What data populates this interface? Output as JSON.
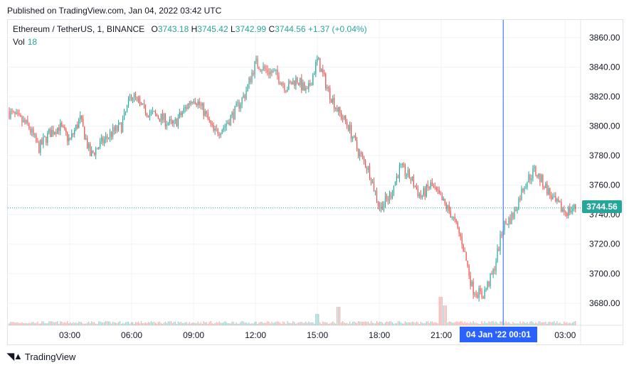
{
  "header": {
    "published": "Published on TradingView.com, Jan 04, 2022 03:42 UTC"
  },
  "legend": {
    "symbol": "Ethereum / TetherUS, 1, BINANCE",
    "open_label": "O",
    "open": "3743.18",
    "high_label": "H",
    "high": "3745.42",
    "low_label": "L",
    "low": "3742.99",
    "close_label": "C",
    "close": "3744.56",
    "change": "+1.37 (+0.04%)"
  },
  "volume": {
    "label": "Vol",
    "value": "18"
  },
  "footer": {
    "brand": "TradingView"
  },
  "colors": {
    "up": "#26a69a",
    "down": "#ef5350",
    "crosshair": "#2962ff",
    "grid": "#f0f3fa"
  },
  "chart_data": {
    "type": "candlestick",
    "last_price_label": "3744.56",
    "crosshair_label": "04 Jan '22   00:01",
    "y_ticks": [
      "3860.00",
      "3840.00",
      "3820.00",
      "3800.00",
      "3780.00",
      "3760.00",
      "3740.00",
      "3720.00",
      "3700.00",
      "3680.00"
    ],
    "y_tick_values": [
      3860,
      3840,
      3820,
      3800,
      3780,
      3760,
      3740,
      3720,
      3700,
      3680
    ],
    "ylim": [
      3665,
      3872
    ],
    "x_ticks": [
      "03:00",
      "06:00",
      "09:00",
      "12:00",
      "15:00",
      "18:00",
      "21:00",
      "00:00",
      "03:00"
    ],
    "x_tick_hours": [
      3,
      6,
      9,
      12,
      15,
      18,
      21,
      24,
      27
    ],
    "xlim_hours": [
      0.0,
      27.75
    ],
    "crosshair_hour": 24.0,
    "grid": true,
    "close_path": [
      [
        0.0,
        3810
      ],
      [
        0.5,
        3805
      ],
      [
        1.0,
        3800
      ],
      [
        1.5,
        3785
      ],
      [
        2.0,
        3795
      ],
      [
        2.5,
        3800
      ],
      [
        3.0,
        3790
      ],
      [
        3.5,
        3805
      ],
      [
        4.0,
        3780
      ],
      [
        4.5,
        3788
      ],
      [
        5.0,
        3795
      ],
      [
        5.5,
        3800
      ],
      [
        6.0,
        3822
      ],
      [
        6.5,
        3812
      ],
      [
        7.0,
        3808
      ],
      [
        7.5,
        3805
      ],
      [
        8.0,
        3800
      ],
      [
        8.5,
        3810
      ],
      [
        9.0,
        3820
      ],
      [
        9.5,
        3810
      ],
      [
        10.0,
        3795
      ],
      [
        10.5,
        3800
      ],
      [
        11.0,
        3810
      ],
      [
        11.5,
        3822
      ],
      [
        12.0,
        3843
      ],
      [
        12.5,
        3838
      ],
      [
        13.0,
        3835
      ],
      [
        13.5,
        3826
      ],
      [
        14.0,
        3832
      ],
      [
        14.5,
        3822
      ],
      [
        15.0,
        3845
      ],
      [
        15.5,
        3825
      ],
      [
        16.0,
        3810
      ],
      [
        16.5,
        3800
      ],
      [
        17.0,
        3782
      ],
      [
        17.5,
        3770
      ],
      [
        18.0,
        3745
      ],
      [
        18.5,
        3752
      ],
      [
        19.0,
        3772
      ],
      [
        19.5,
        3765
      ],
      [
        20.0,
        3752
      ],
      [
        20.5,
        3760
      ],
      [
        21.0,
        3750
      ],
      [
        21.5,
        3740
      ],
      [
        22.0,
        3722
      ],
      [
        22.5,
        3690
      ],
      [
        23.0,
        3685
      ],
      [
        23.5,
        3700
      ],
      [
        24.0,
        3732
      ],
      [
        24.5,
        3740
      ],
      [
        25.0,
        3760
      ],
      [
        25.5,
        3770
      ],
      [
        26.0,
        3760
      ],
      [
        26.5,
        3748
      ],
      [
        27.0,
        3742
      ],
      [
        27.5,
        3744.56
      ]
    ],
    "volume_spikes": [
      [
        15.0,
        16
      ],
      [
        16.0,
        26
      ],
      [
        21.0,
        40
      ],
      [
        21.2,
        28
      ]
    ],
    "last_price": 3744.56
  }
}
